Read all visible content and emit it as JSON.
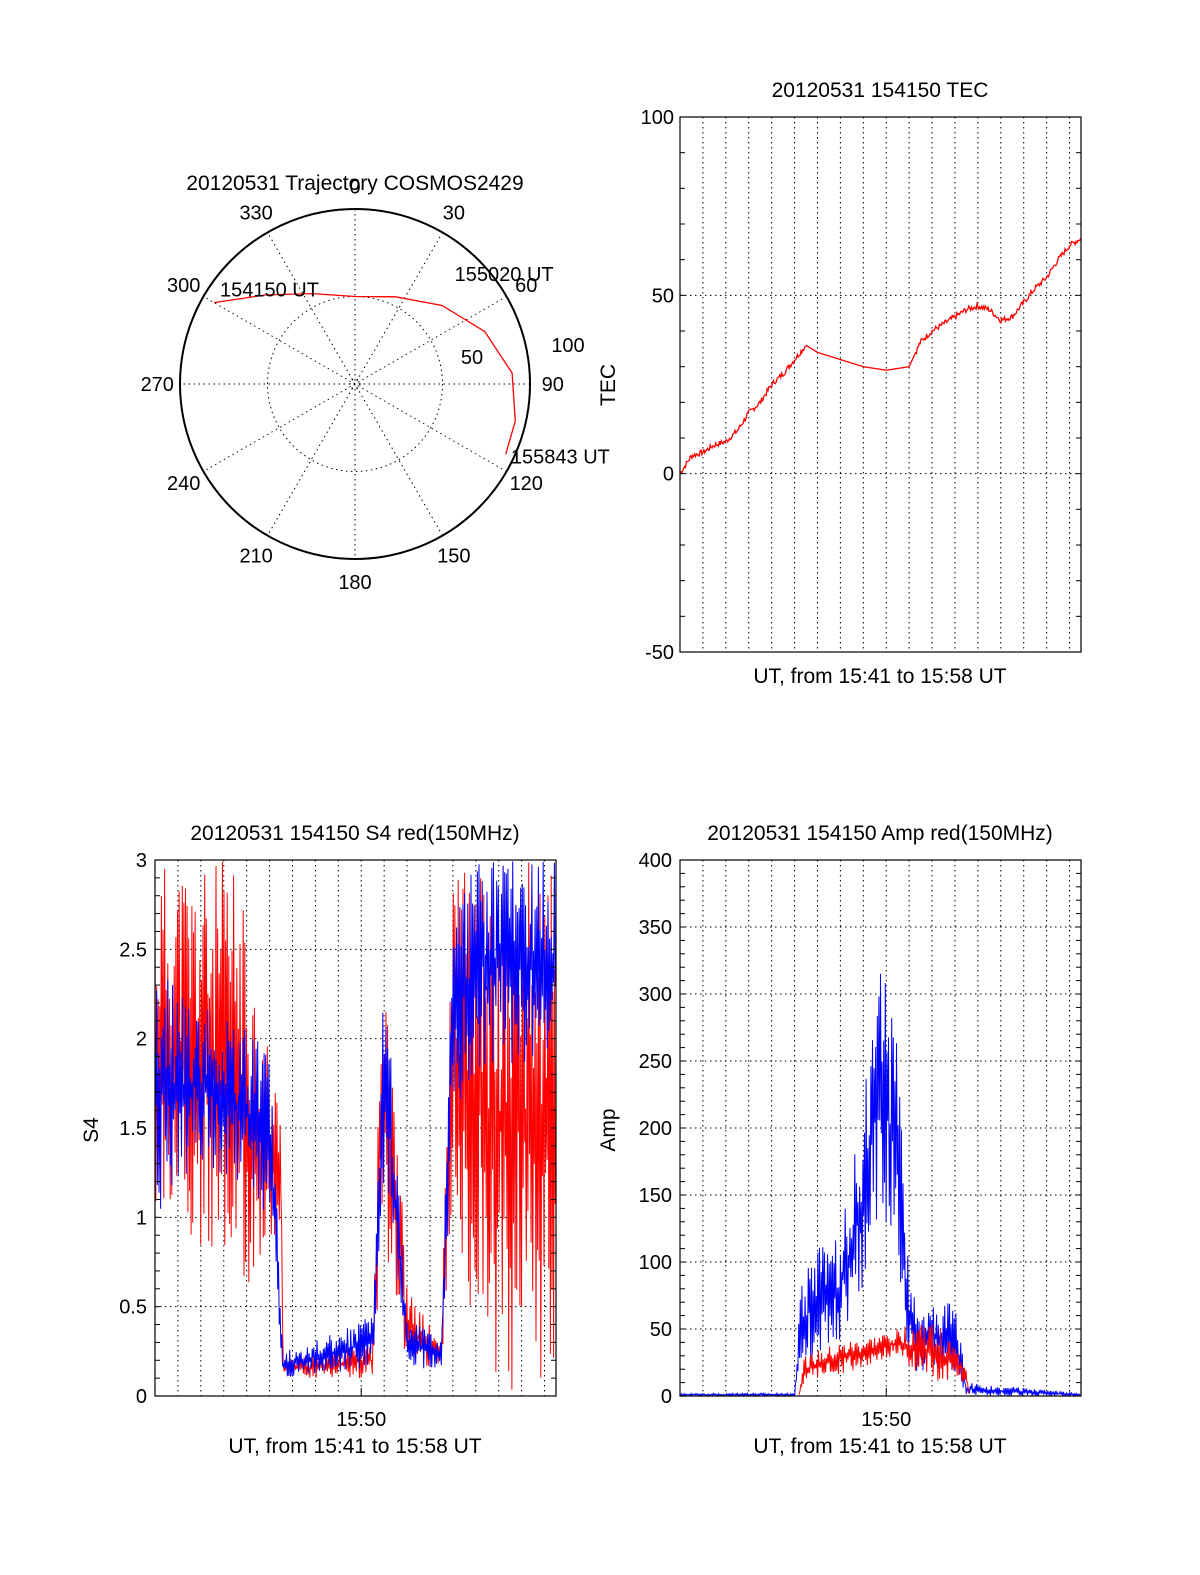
{
  "chart_data": [
    {
      "type": "polar",
      "title": "20120531 Trajectory COSMOS2429",
      "azimuth_labels": [
        "0",
        "30",
        "60",
        "90",
        "120",
        "150",
        "180",
        "210",
        "240",
        "270",
        "300",
        "330"
      ],
      "elevation_ring_labels": [
        "50",
        "100"
      ],
      "series": [
        {
          "color": "#ff0000",
          "points": [
            {
              "az": 300,
              "zd": 93
            },
            {
              "az": 315,
              "zd": 72
            },
            {
              "az": 335,
              "zd": 57
            },
            {
              "az": 0,
              "zd": 50
            },
            {
              "az": 25,
              "zd": 55
            },
            {
              "az": 48,
              "zd": 67
            },
            {
              "az": 68,
              "zd": 80
            },
            {
              "az": 86,
              "zd": 90
            },
            {
              "az": 103,
              "zd": 94
            },
            {
              "az": 115,
              "zd": 95
            }
          ]
        }
      ],
      "annotations": [
        {
          "text": "154150 UT",
          "az": 303,
          "zd": 92
        },
        {
          "text": "155020 UT",
          "az": 44,
          "zd": 82
        },
        {
          "text": "155843 UT",
          "az": 117,
          "zd": 100
        }
      ]
    },
    {
      "type": "line",
      "title": "20120531 154150 TEC",
      "xlabel": "UT, from 15:41 to 15:58 UT",
      "ylabel": "TEC",
      "xlim": [
        0,
        17.5
      ],
      "ylim": [
        -50,
        100
      ],
      "yticks": [
        "-50",
        "0",
        "50",
        "100"
      ],
      "series": [
        {
          "color": "#ff0000",
          "x": [
            0,
            0.5,
            1.0,
            1.5,
            2.0,
            2.5,
            3.0,
            3.5,
            4.0,
            4.5,
            5.0,
            5.5,
            6.0,
            7.0,
            8.0,
            9.0,
            10.0,
            10.5,
            11.0,
            11.5,
            12.0,
            12.5,
            13.0,
            13.5,
            14.0,
            14.5,
            15.0,
            15.5,
            16.0,
            16.5,
            17.0,
            17.5
          ],
          "values": [
            0,
            5,
            6,
            8,
            9,
            12,
            17,
            20,
            25,
            28,
            32,
            36,
            34,
            32,
            30,
            29,
            30,
            37,
            40,
            42,
            44,
            46,
            47,
            46,
            43,
            44,
            48,
            52,
            55,
            60,
            64,
            66
          ]
        }
      ]
    },
    {
      "type": "line",
      "title": "20120531 154150 S4 red(150MHz)",
      "xlabel": "UT, from 15:41 to 15:58 UT",
      "ylabel": "S4",
      "xlim": [
        0,
        17.5
      ],
      "ylim": [
        0,
        3
      ],
      "yticks": [
        "0",
        "0.5",
        "1",
        "1.5",
        "2",
        "2.5",
        "3"
      ],
      "xticks": [
        {
          "x": 9,
          "label": "15:50"
        }
      ],
      "series": [
        {
          "color": "#ff0000",
          "envelope": [
            [
              0,
              1.0,
              3.0
            ],
            [
              3.5,
              0.5,
              3.0
            ],
            [
              5.5,
              0.9,
              1.6
            ],
            [
              5.6,
              0.1,
              0.2
            ],
            [
              9.5,
              0.1,
              0.3
            ],
            [
              10.0,
              0.8,
              3.0
            ],
            [
              11.0,
              0.15,
              0.6
            ],
            [
              12.5,
              0.15,
              0.3
            ],
            [
              13.0,
              1.0,
              3.0
            ],
            [
              14.5,
              0.0,
              3.0
            ],
            [
              17.5,
              0.0,
              3.0
            ]
          ]
        },
        {
          "color": "#0000ff",
          "envelope": [
            [
              0,
              1.0,
              2.4
            ],
            [
              2.0,
              1.3,
              2.2
            ],
            [
              5.0,
              1.0,
              2.0
            ],
            [
              5.6,
              0.1,
              0.25
            ],
            [
              9.5,
              0.15,
              0.45
            ],
            [
              10.0,
              1.2,
              2.5
            ],
            [
              11.0,
              0.15,
              0.45
            ],
            [
              12.5,
              0.15,
              0.3
            ],
            [
              13.0,
              1.5,
              2.8
            ],
            [
              14.0,
              1.8,
              3.0
            ],
            [
              17.5,
              1.9,
              3.0
            ]
          ]
        }
      ]
    },
    {
      "type": "line",
      "title": "20120531 154150 Amp red(150MHz)",
      "xlabel": "UT, from 15:41 to 15:58 UT",
      "ylabel": "Amp",
      "xlim": [
        0,
        17.5
      ],
      "ylim": [
        0,
        400
      ],
      "yticks": [
        "0",
        "50",
        "100",
        "150",
        "200",
        "250",
        "300",
        "350",
        "400"
      ],
      "xticks": [
        {
          "x": 9,
          "label": "15:50"
        }
      ],
      "series": [
        {
          "color": "#0000ff",
          "envelope": [
            [
              0,
              0,
              2
            ],
            [
              5.0,
              0,
              2
            ],
            [
              5.3,
              10,
              100
            ],
            [
              6.0,
              30,
              110
            ],
            [
              7.0,
              40,
              120
            ],
            [
              8.0,
              80,
              220
            ],
            [
              8.8,
              140,
              340
            ],
            [
              9.5,
              80,
              260
            ],
            [
              10.0,
              20,
              90
            ],
            [
              10.5,
              15,
              60
            ],
            [
              11.0,
              20,
              70
            ],
            [
              12.0,
              15,
              70
            ],
            [
              12.5,
              0,
              10
            ],
            [
              17.5,
              0,
              2
            ]
          ]
        },
        {
          "color": "#ff0000",
          "envelope": [
            [
              5.2,
              0,
              2
            ],
            [
              5.4,
              10,
              30
            ],
            [
              7.0,
              15,
              40
            ],
            [
              8.5,
              25,
              45
            ],
            [
              9.5,
              30,
              50
            ],
            [
              10.5,
              10,
              60
            ],
            [
              11.5,
              10,
              50
            ],
            [
              12.5,
              10,
              25
            ],
            [
              12.6,
              0,
              2
            ]
          ]
        }
      ]
    }
  ]
}
